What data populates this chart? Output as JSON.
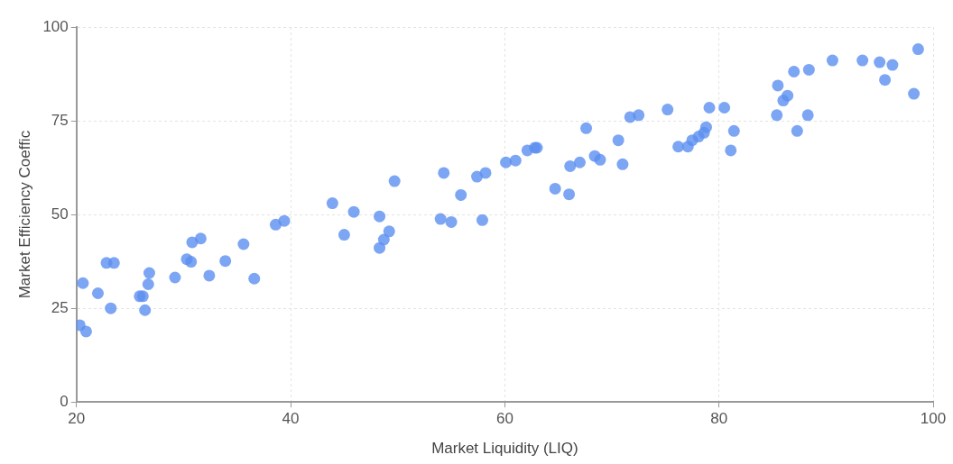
{
  "chart_data": {
    "type": "scatter",
    "xlabel": "Market Liquidity (LIQ)",
    "ylabel": "Market Efficiency Coeffic",
    "xlim": [
      20,
      100
    ],
    "xticks": [
      20,
      40,
      60,
      80,
      100
    ],
    "ylim": [
      0,
      100
    ],
    "yticks": [
      0,
      25,
      50,
      75,
      100
    ],
    "grid": true,
    "legend": false,
    "marker": "circle",
    "series": [
      {
        "color": "#5b8ff0",
        "x": [
          20.3,
          20.9,
          20.6,
          22.0,
          22.8,
          23.5,
          23.2,
          25.9,
          26.2,
          26.4,
          26.7,
          26.8,
          29.2,
          30.3,
          30.7,
          30.8,
          31.6,
          32.4,
          33.9,
          35.6,
          36.6,
          38.6,
          39.4,
          43.9,
          45.0,
          45.9,
          48.3,
          48.3,
          48.7,
          49.2,
          49.7,
          54.0,
          54.3,
          55.0,
          55.9,
          57.4,
          57.9,
          58.2,
          60.1,
          61.0,
          62.1,
          62.8,
          63.0,
          64.7,
          66.0,
          66.1,
          67.0,
          67.6,
          68.4,
          68.9,
          70.6,
          71.0,
          71.7,
          72.5,
          75.2,
          76.2,
          77.1,
          77.5,
          78.1,
          78.6,
          78.8,
          79.1,
          80.5,
          81.1,
          81.4,
          85.4,
          85.5,
          86.0,
          86.4,
          87.0,
          87.3,
          88.3,
          88.4,
          90.6,
          93.4,
          95.0,
          95.5,
          96.2,
          98.2,
          98.6
        ],
        "values": [
          20.5,
          18.8,
          31.7,
          29.0,
          37.1,
          37.1,
          25.0,
          28.2,
          28.2,
          24.5,
          31.4,
          34.4,
          33.2,
          38.1,
          37.4,
          42.6,
          43.6,
          33.7,
          37.6,
          42.1,
          32.9,
          47.3,
          48.3,
          53.0,
          44.6,
          50.7,
          49.5,
          41.1,
          43.3,
          45.5,
          58.9,
          48.8,
          61.1,
          48.0,
          55.2,
          60.1,
          48.5,
          61.1,
          63.9,
          64.4,
          67.1,
          67.8,
          67.8,
          56.9,
          55.4,
          62.9,
          63.9,
          73.0,
          65.6,
          64.6,
          69.8,
          63.4,
          76.0,
          76.5,
          78.0,
          68.1,
          68.1,
          69.8,
          70.8,
          71.8,
          73.3,
          78.5,
          78.5,
          67.1,
          72.3,
          76.5,
          84.4,
          80.4,
          81.7,
          88.1,
          72.3,
          76.5,
          88.6,
          91.1,
          91.1,
          90.6,
          85.9,
          89.9,
          82.2,
          94.1
        ]
      }
    ]
  }
}
